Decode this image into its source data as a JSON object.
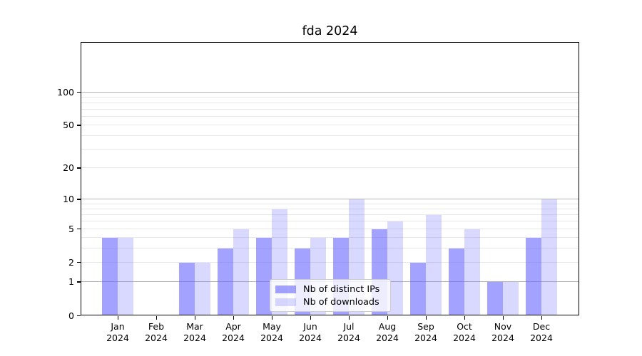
{
  "chart_data": {
    "type": "bar",
    "title": "fda 2024",
    "categories": [
      "Jan",
      "Feb",
      "Mar",
      "Apr",
      "May",
      "Jun",
      "Jul",
      "Aug",
      "Sep",
      "Oct",
      "Nov",
      "Dec"
    ],
    "category_year": "2024",
    "series": [
      {
        "name": "Nb of distinct IPs",
        "color": "rgba(102,102,255,0.6)",
        "values": [
          4,
          0,
          2,
          3,
          4,
          3,
          4,
          5,
          2,
          3,
          1,
          4
        ]
      },
      {
        "name": "Nb of downloads",
        "color": "rgba(102,102,255,0.25)",
        "values": [
          4,
          0,
          2,
          5,
          8,
          4,
          10,
          6,
          7,
          5,
          1,
          10
        ]
      }
    ],
    "yticks": [
      0,
      1,
      2,
      5,
      10,
      20,
      50,
      100
    ],
    "ylim": [
      0,
      115
    ],
    "scale": "log1p",
    "grid": "on",
    "grid_major": [
      1,
      10,
      100
    ],
    "grid_minor": [
      2,
      3,
      4,
      5,
      6,
      7,
      8,
      9,
      20,
      30,
      40,
      50,
      60,
      70,
      80,
      90
    ],
    "legend_position": "lower-center",
    "colors": {
      "bar_base": "#6666ff",
      "grid_major": "#b4b4b4",
      "grid_minor": "#e7e7e7",
      "spine": "#000000",
      "text": "#000000",
      "legend_border": "#cccccc"
    }
  }
}
